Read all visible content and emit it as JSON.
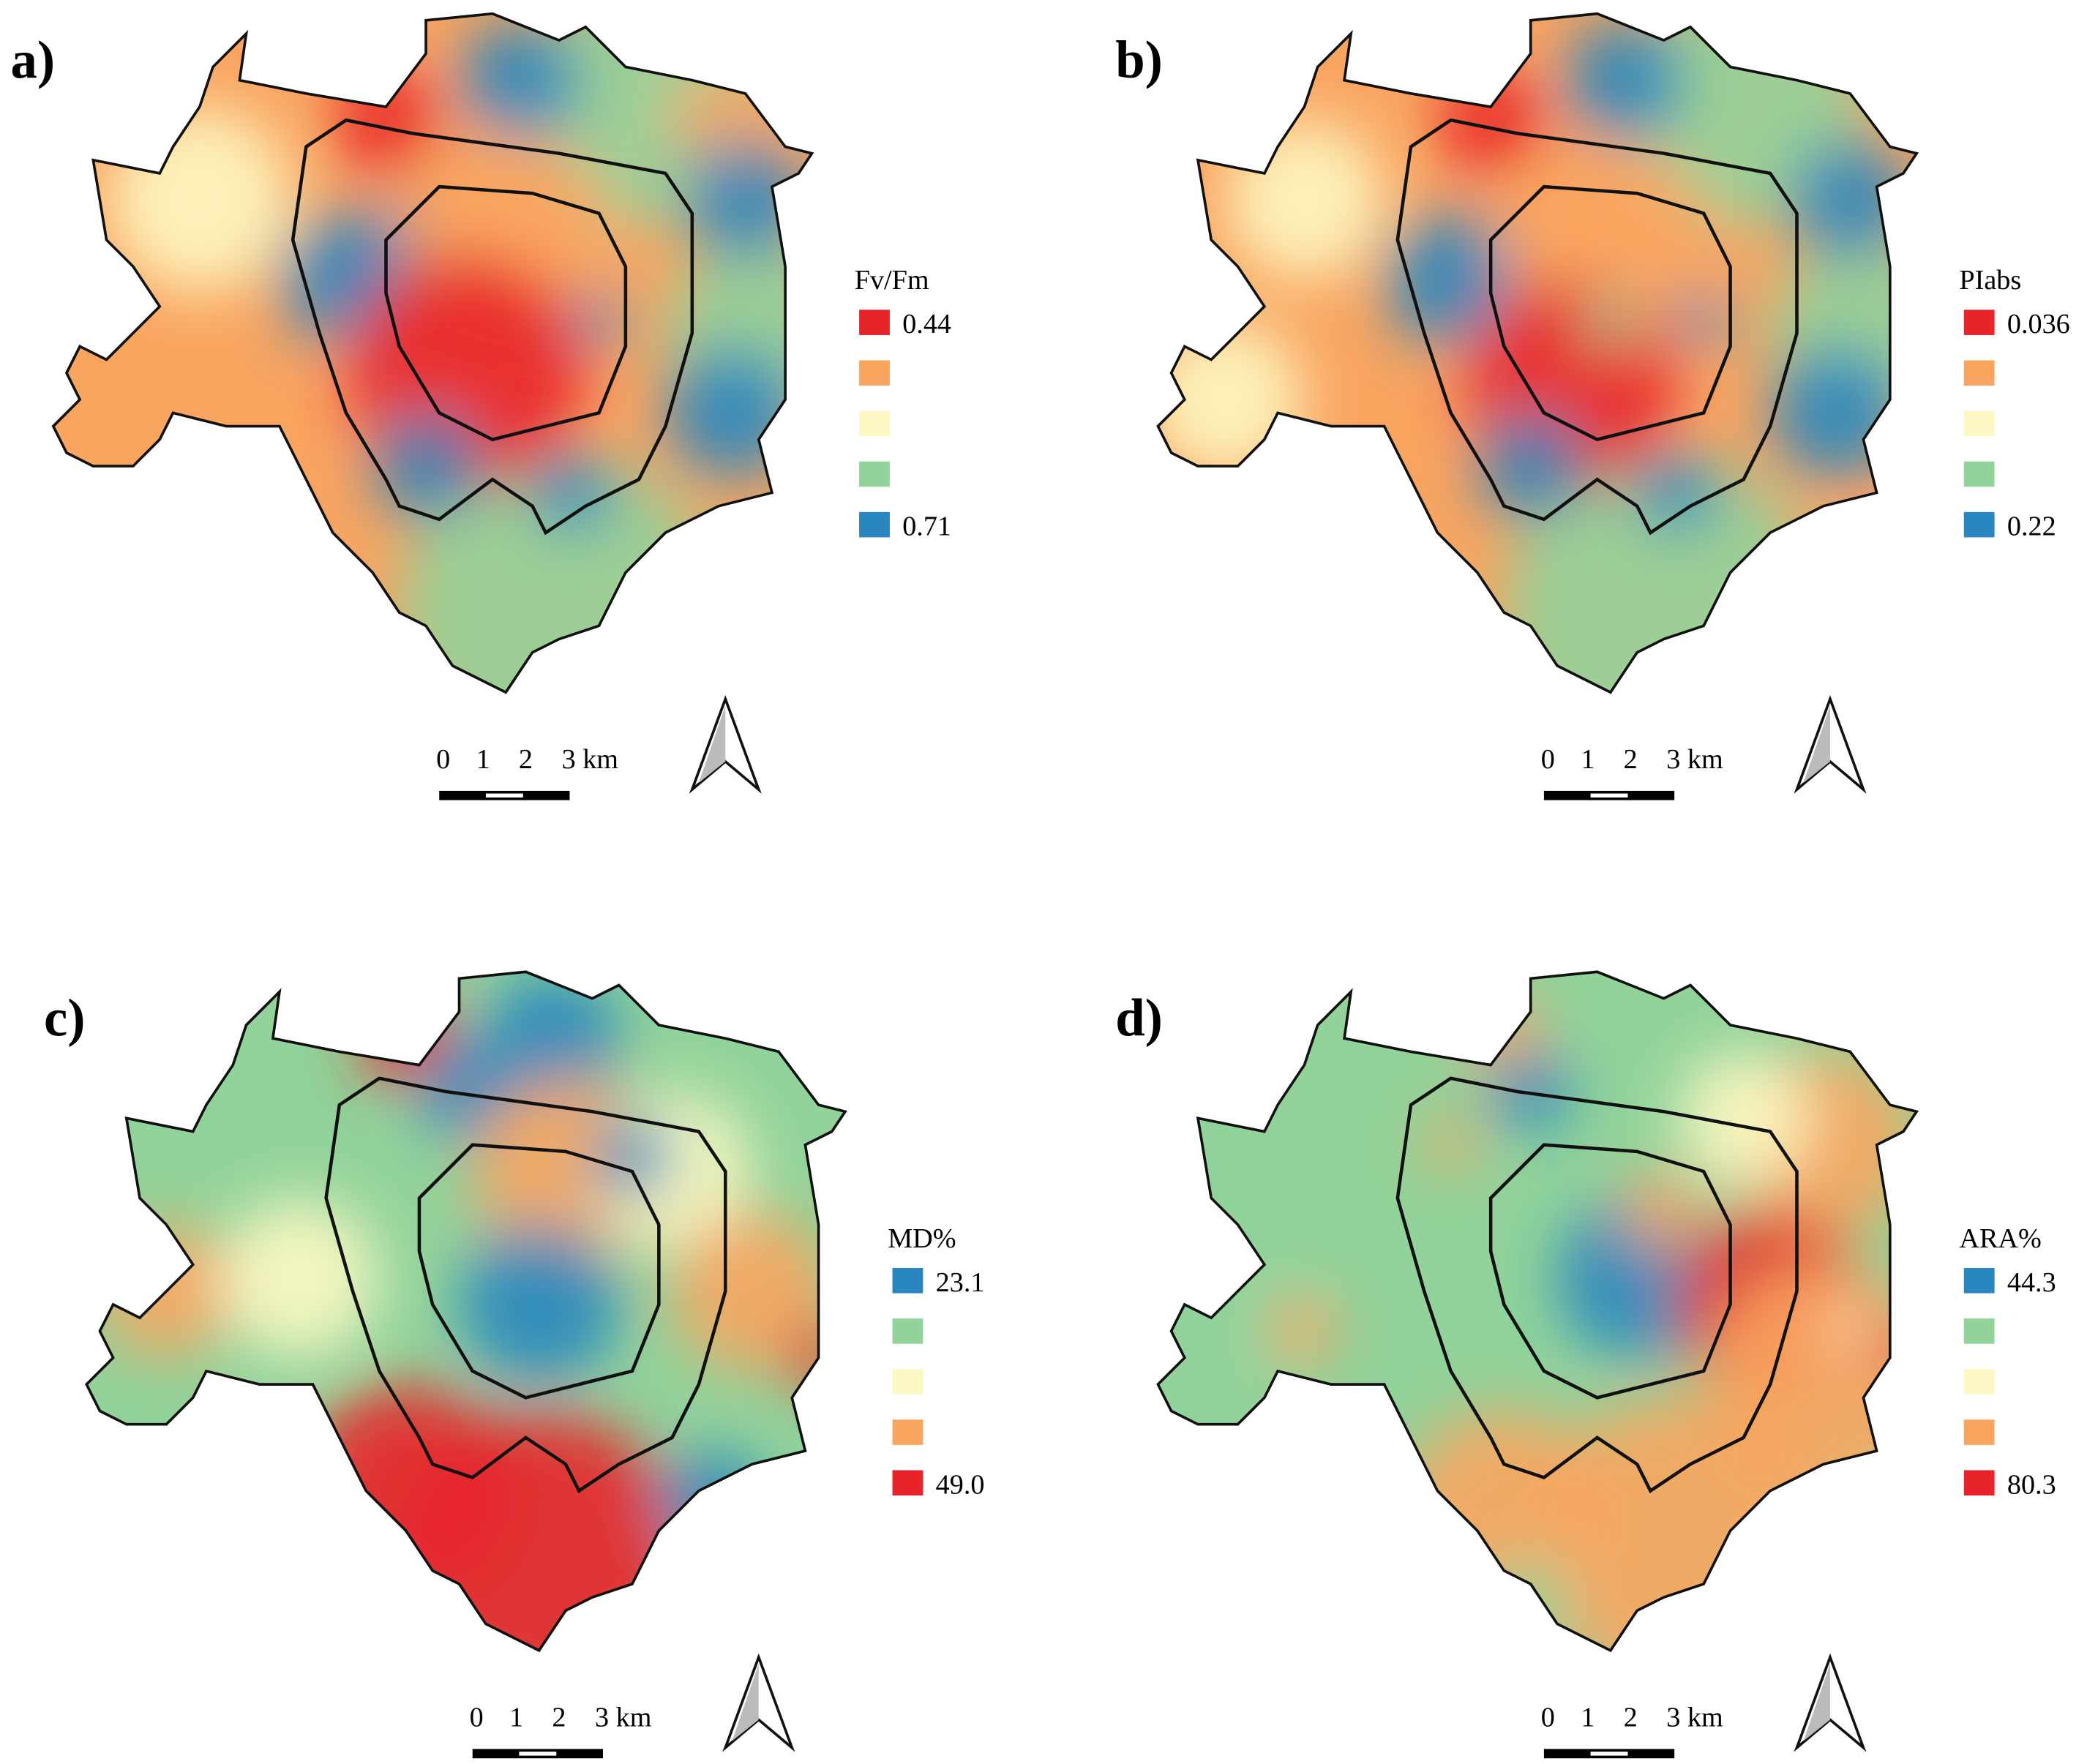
{
  "panels": [
    {
      "label": "a)",
      "legend": {
        "title": "Fv/Fm",
        "entries": [
          {
            "color": "#e8242a",
            "label": "0.44"
          },
          {
            "color": "#f9a560"
          },
          {
            "color": "#fdf8c3"
          },
          {
            "color": "#91d39b"
          },
          {
            "color": "#2a86bf",
            "label": "0.71"
          }
        ]
      },
      "scale": [
        "0",
        "1",
        "2",
        "3 km"
      ]
    },
    {
      "label": "b)",
      "legend": {
        "title": "PIabs",
        "entries": [
          {
            "color": "#e8242a",
            "label": "0.036"
          },
          {
            "color": "#f9a560"
          },
          {
            "color": "#fdf8c3"
          },
          {
            "color": "#91d39b"
          },
          {
            "color": "#2a86bf",
            "label": "0.22"
          }
        ]
      },
      "scale": [
        "0",
        "1",
        "2",
        "3 km"
      ]
    },
    {
      "label": "c)",
      "legend": {
        "title": "MD%",
        "entries": [
          {
            "color": "#2a86bf",
            "label": "23.1"
          },
          {
            "color": "#91d39b"
          },
          {
            "color": "#fdf8c3"
          },
          {
            "color": "#f9a560"
          },
          {
            "color": "#e8242a",
            "label": "49.0"
          }
        ]
      },
      "scale": [
        "0",
        "1",
        "2",
        "3 km"
      ]
    },
    {
      "label": "d)",
      "legend": {
        "title": "ARA%",
        "entries": [
          {
            "color": "#2a86bf",
            "label": "44.3"
          },
          {
            "color": "#91d39b"
          },
          {
            "color": "#fdf8c3"
          },
          {
            "color": "#f9a560"
          },
          {
            "color": "#e8242a",
            "label": "80.3"
          }
        ]
      },
      "scale": [
        "0",
        "1",
        "2",
        "3 km"
      ]
    }
  ]
}
